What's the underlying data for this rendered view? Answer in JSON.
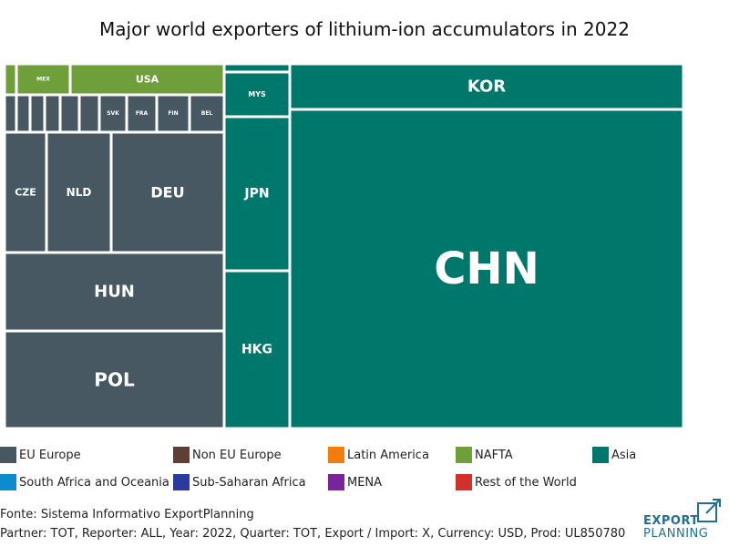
{
  "chart_data": {
    "type": "treemap",
    "title": "Major world exporters of lithium-ion accumulators in 2022",
    "nodes": [
      {
        "label": "CHN",
        "region": "Asia",
        "value": 39.3
      },
      {
        "label": "KOR",
        "region": "Asia",
        "value": 5.7
      },
      {
        "label": "HKG",
        "region": "Asia",
        "value": 5.4
      },
      {
        "label": "JPN",
        "region": "Asia",
        "value": 5.3
      },
      {
        "label": "MYS",
        "region": "Asia",
        "value": 1.6
      },
      {
        "label": "",
        "region": "Asia",
        "value": 0.3
      },
      {
        "label": "POL",
        "region": "EU Europe",
        "value": 8.0
      },
      {
        "label": "HUN",
        "region": "EU Europe",
        "value": 6.4
      },
      {
        "label": "DEU",
        "region": "EU Europe",
        "value": 6.0
      },
      {
        "label": "NLD",
        "region": "EU Europe",
        "value": 3.1
      },
      {
        "label": "CZE",
        "region": "EU Europe",
        "value": 2.0
      },
      {
        "label": "BEL",
        "region": "EU Europe",
        "value": 0.8
      },
      {
        "label": "FIN",
        "region": "EU Europe",
        "value": 0.8
      },
      {
        "label": "FRA",
        "region": "EU Europe",
        "value": 0.7
      },
      {
        "label": "SVK",
        "region": "EU Europe",
        "value": 0.7
      },
      {
        "label": "",
        "region": "EU Europe",
        "value": 0.45
      },
      {
        "label": "",
        "region": "EU Europe",
        "value": 0.4
      },
      {
        "label": "",
        "region": "EU Europe",
        "value": 0.3
      },
      {
        "label": "",
        "region": "EU Europe",
        "value": 0.3
      },
      {
        "label": "",
        "region": "EU Europe",
        "value": 0.2
      },
      {
        "label": "",
        "region": "EU Europe",
        "value": 0.1
      },
      {
        "label": "USA",
        "region": "NAFTA",
        "value": 2.6
      },
      {
        "label": "MEX",
        "region": "NAFTA",
        "value": 0.9
      },
      {
        "label": "",
        "region": "NAFTA",
        "value": 0.2
      },
      {
        "label": "",
        "region": "South Africa and Oceania",
        "value": 0.1
      },
      {
        "label": "",
        "region": "Non EU Europe",
        "value": 0.2
      },
      {
        "label": "",
        "region": "Non EU Europe",
        "value": 0.2
      },
      {
        "label": "",
        "region": "Non EU Europe",
        "value": 0.2
      }
    ]
  },
  "legend": [
    {
      "label": "EU Europe",
      "color": "#475863"
    },
    {
      "label": "Non EU Europe",
      "color": "#5d3f36"
    },
    {
      "label": "Latin America",
      "color": "#f47c0b"
    },
    {
      "label": "NAFTA",
      "color": "#6e9f3a"
    },
    {
      "label": "Asia",
      "color": "#00776b"
    },
    {
      "label": "South Africa and Oceania",
      "color": "#0a8ccd"
    },
    {
      "label": "Sub-Saharan Africa",
      "color": "#2b3a9c"
    },
    {
      "label": "MENA",
      "color": "#7a249c"
    },
    {
      "label": "Rest of the World",
      "color": "#d2302c"
    }
  ],
  "footer": {
    "source": "Fonte: Sistema Informativo ExportPlanning",
    "params": "Partner: TOT, Reporter: ALL, Year: 2022, Quarter: TOT, Export / Import: X, Currency: USD, Prod: UL850780"
  },
  "logo": {
    "line1": "EXPORT",
    "line2": "PLANNING",
    "icon": "square-arrow-icon",
    "color": "#1f6f9a"
  }
}
